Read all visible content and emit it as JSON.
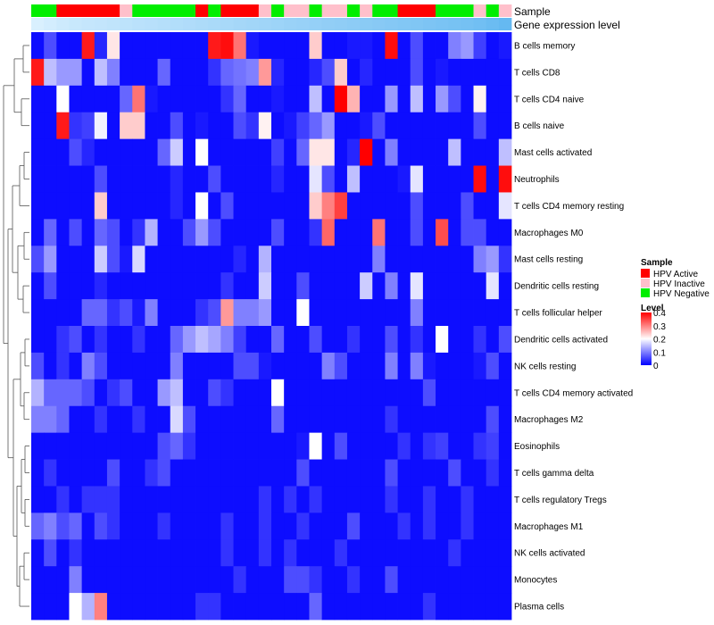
{
  "chart_data": {
    "type": "heatmap",
    "title": "",
    "annotation_labels": [
      "Sample",
      "Gene expression level"
    ],
    "rows": [
      "B cells memory",
      "T cells CD8",
      "T cells CD4 naive",
      "B cells naive",
      "Mast cells activated",
      "Neutrophils",
      "T cells CD4 memory resting",
      "Macrophages M0",
      "Mast cells resting",
      "Dendritic cells resting",
      "T cells follicular helper",
      "Dendritic cells activated",
      "NK cells resting",
      "T cells CD4 memory activated",
      "Macrophages M2",
      "Eosinophils",
      "T cells gamma delta",
      "T cells regulatory  Tregs",
      "Macrophages M1",
      "NK cells activated",
      "Monocytes",
      "Plasma cells"
    ],
    "sample_groups": [
      "N",
      "N",
      "A",
      "A",
      "A",
      "A",
      "A",
      "I",
      "N",
      "N",
      "N",
      "N",
      "N",
      "A",
      "N",
      "A",
      "A",
      "A",
      "I",
      "N",
      "I",
      "I",
      "N",
      "I",
      "I",
      "N",
      "I",
      "N",
      "N",
      "A",
      "A",
      "A",
      "N",
      "N",
      "N",
      "I",
      "N",
      "I"
    ],
    "expression_level": [
      0.05,
      0.1,
      0.14,
      0.18,
      0.2,
      0.22,
      0.24,
      0.26,
      0.28,
      0.3,
      0.32,
      0.34,
      0.36,
      0.38,
      0.4,
      0.42,
      0.44,
      0.46,
      0.48,
      0.5,
      0.52,
      0.54,
      0.56,
      0.58,
      0.6,
      0.62,
      0.64,
      0.66,
      0.68,
      0.7,
      0.72,
      0.74,
      0.76,
      0.78,
      0.8,
      0.83,
      0.87,
      0.92
    ],
    "values": [
      [
        0.01,
        0.06,
        0.01,
        0.01,
        0.38,
        0.03,
        0.22,
        0.01,
        0.01,
        0.01,
        0.01,
        0.01,
        0.01,
        0.01,
        0.38,
        0.39,
        0.31,
        0.02,
        0.01,
        0.01,
        0.01,
        0.01,
        0.24,
        0.01,
        0.01,
        0.02,
        0.02,
        0.01,
        0.39,
        0.01,
        0.06,
        0.01,
        0.01,
        0.1,
        0.12,
        0.05,
        0.01,
        0.02
      ],
      [
        0.38,
        0.15,
        0.12,
        0.12,
        0.01,
        0.15,
        0.1,
        0.01,
        0.01,
        0.01,
        0.08,
        0.01,
        0.01,
        0.01,
        0.04,
        0.08,
        0.09,
        0.1,
        0.28,
        0.03,
        0.01,
        0.01,
        0.03,
        0.06,
        0.24,
        0.01,
        0.03,
        0.01,
        0.01,
        0.01,
        0.06,
        0.01,
        0.02,
        0.01,
        0.01,
        0.01,
        0.01,
        0.01
      ],
      [
        0.01,
        0.01,
        0.2,
        0.01,
        0.01,
        0.01,
        0.01,
        0.08,
        0.31,
        0.02,
        0.01,
        0.01,
        0.01,
        0.01,
        0.01,
        0.04,
        0.08,
        0.01,
        0.01,
        0.02,
        0.01,
        0.01,
        0.15,
        0.01,
        0.4,
        0.26,
        0.01,
        0.01,
        0.12,
        0.01,
        0.15,
        0.01,
        0.12,
        0.06,
        0.01,
        0.21,
        0.01,
        0.01
      ],
      [
        0.01,
        0.01,
        0.38,
        0.04,
        0.05,
        0.19,
        0.01,
        0.24,
        0.24,
        0.01,
        0.01,
        0.06,
        0.01,
        0.02,
        0.01,
        0.01,
        0.06,
        0.04,
        0.21,
        0.01,
        0.02,
        0.05,
        0.08,
        0.12,
        0.01,
        0.01,
        0.02,
        0.06,
        0.01,
        0.01,
        0.01,
        0.01,
        0.01,
        0.01,
        0.01,
        0.06,
        0.01,
        0.01
      ],
      [
        0.01,
        0.01,
        0.01,
        0.06,
        0.03,
        0.01,
        0.01,
        0.01,
        0.01,
        0.01,
        0.08,
        0.16,
        0.01,
        0.2,
        0.01,
        0.01,
        0.01,
        0.01,
        0.01,
        0.05,
        0.01,
        0.08,
        0.22,
        0.22,
        0.01,
        0.03,
        0.4,
        0.01,
        0.1,
        0.01,
        0.01,
        0.01,
        0.01,
        0.15,
        0.01,
        0.01,
        0.01,
        0.15
      ],
      [
        0.01,
        0.01,
        0.01,
        0.01,
        0.01,
        0.06,
        0.01,
        0.01,
        0.01,
        0.01,
        0.01,
        0.03,
        0.01,
        0.01,
        0.06,
        0.01,
        0.01,
        0.01,
        0.01,
        0.03,
        0.01,
        0.01,
        0.18,
        0.06,
        0.01,
        0.15,
        0.01,
        0.01,
        0.01,
        0.02,
        0.18,
        0.01,
        0.01,
        0.01,
        0.01,
        0.39,
        0.01,
        0.39
      ],
      [
        0.01,
        0.01,
        0.01,
        0.01,
        0.01,
        0.24,
        0.01,
        0.01,
        0.01,
        0.01,
        0.01,
        0.03,
        0.01,
        0.2,
        0.01,
        0.06,
        0.01,
        0.01,
        0.01,
        0.01,
        0.01,
        0.01,
        0.24,
        0.3,
        0.35,
        0.01,
        0.01,
        0.01,
        0.01,
        0.01,
        0.06,
        0.01,
        0.01,
        0.01,
        0.06,
        0.01,
        0.01,
        0.18
      ],
      [
        0.01,
        0.08,
        0.01,
        0.06,
        0.01,
        0.08,
        0.06,
        0.01,
        0.04,
        0.14,
        0.01,
        0.01,
        0.06,
        0.12,
        0.06,
        0.01,
        0.01,
        0.01,
        0.01,
        0.06,
        0.01,
        0.01,
        0.04,
        0.32,
        0.01,
        0.01,
        0.01,
        0.31,
        0.01,
        0.01,
        0.06,
        0.01,
        0.34,
        0.01,
        0.06,
        0.06,
        0.01,
        0.01
      ],
      [
        0.06,
        0.12,
        0.01,
        0.01,
        0.01,
        0.16,
        0.06,
        0.02,
        0.17,
        0.01,
        0.01,
        0.01,
        0.01,
        0.01,
        0.01,
        0.01,
        0.03,
        0.01,
        0.14,
        0.01,
        0.01,
        0.01,
        0.01,
        0.01,
        0.01,
        0.01,
        0.01,
        0.1,
        0.01,
        0.01,
        0.01,
        0.01,
        0.01,
        0.01,
        0.01,
        0.1,
        0.12,
        0.04
      ],
      [
        0.01,
        0.06,
        0.01,
        0.01,
        0.01,
        0.03,
        0.01,
        0.01,
        0.01,
        0.01,
        0.01,
        0.01,
        0.01,
        0.01,
        0.01,
        0.04,
        0.01,
        0.01,
        0.16,
        0.01,
        0.01,
        0.06,
        0.01,
        0.01,
        0.01,
        0.01,
        0.16,
        0.01,
        0.1,
        0.01,
        0.18,
        0.01,
        0.01,
        0.01,
        0.01,
        0.01,
        0.18,
        0.01
      ],
      [
        0.01,
        0.01,
        0.01,
        0.01,
        0.08,
        0.08,
        0.04,
        0.06,
        0.02,
        0.1,
        0.01,
        0.01,
        0.01,
        0.04,
        0.06,
        0.28,
        0.1,
        0.1,
        0.12,
        0.01,
        0.01,
        0.2,
        0.01,
        0.01,
        0.01,
        0.01,
        0.01,
        0.01,
        0.01,
        0.01,
        0.1,
        0.01,
        0.01,
        0.01,
        0.01,
        0.01,
        0.01,
        0.01
      ],
      [
        0.01,
        0.01,
        0.04,
        0.06,
        0.01,
        0.04,
        0.01,
        0.01,
        0.04,
        0.01,
        0.01,
        0.08,
        0.12,
        0.15,
        0.13,
        0.1,
        0.05,
        0.01,
        0.01,
        0.08,
        0.01,
        0.01,
        0.06,
        0.01,
        0.01,
        0.04,
        0.01,
        0.01,
        0.06,
        0.01,
        0.04,
        0.01,
        0.2,
        0.01,
        0.01,
        0.04,
        0.01,
        0.06
      ],
      [
        0.06,
        0.01,
        0.04,
        0.01,
        0.1,
        0.06,
        0.01,
        0.01,
        0.01,
        0.01,
        0.01,
        0.1,
        0.01,
        0.01,
        0.01,
        0.01,
        0.06,
        0.06,
        0.02,
        0.01,
        0.01,
        0.01,
        0.01,
        0.1,
        0.06,
        0.01,
        0.01,
        0.01,
        0.1,
        0.01,
        0.1,
        0.02,
        0.01,
        0.01,
        0.01,
        0.02,
        0.06,
        0.01
      ],
      [
        0.14,
        0.08,
        0.08,
        0.08,
        0.06,
        0.01,
        0.04,
        0.06,
        0.01,
        0.01,
        0.12,
        0.15,
        0.01,
        0.01,
        0.06,
        0.04,
        0.01,
        0.01,
        0.01,
        0.2,
        0.01,
        0.01,
        0.01,
        0.01,
        0.01,
        0.01,
        0.01,
        0.01,
        0.01,
        0.01,
        0.01,
        0.06,
        0.01,
        0.01,
        0.01,
        0.01,
        0.01,
        0.01
      ],
      [
        0.1,
        0.1,
        0.08,
        0.01,
        0.01,
        0.04,
        0.01,
        0.01,
        0.04,
        0.01,
        0.01,
        0.17,
        0.06,
        0.01,
        0.01,
        0.01,
        0.01,
        0.01,
        0.01,
        0.08,
        0.01,
        0.01,
        0.01,
        0.01,
        0.01,
        0.01,
        0.01,
        0.01,
        0.04,
        0.01,
        0.01,
        0.01,
        0.01,
        0.01,
        0.01,
        0.01,
        0.06,
        0.01
      ],
      [
        0.01,
        0.01,
        0.01,
        0.01,
        0.01,
        0.01,
        0.01,
        0.01,
        0.01,
        0.01,
        0.06,
        0.08,
        0.04,
        0.01,
        0.01,
        0.01,
        0.01,
        0.01,
        0.01,
        0.01,
        0.01,
        0.02,
        0.2,
        0.01,
        0.06,
        0.01,
        0.01,
        0.01,
        0.01,
        0.04,
        0.01,
        0.04,
        0.05,
        0.01,
        0.01,
        0.04,
        0.05,
        0.01
      ],
      [
        0.01,
        0.04,
        0.01,
        0.01,
        0.01,
        0.01,
        0.06,
        0.01,
        0.01,
        0.04,
        0.06,
        0.01,
        0.01,
        0.01,
        0.01,
        0.01,
        0.01,
        0.01,
        0.01,
        0.01,
        0.01,
        0.06,
        0.01,
        0.01,
        0.01,
        0.01,
        0.01,
        0.01,
        0.06,
        0.01,
        0.01,
        0.01,
        0.01,
        0.06,
        0.01,
        0.01,
        0.04,
        0.01
      ],
      [
        0.01,
        0.01,
        0.04,
        0.01,
        0.04,
        0.04,
        0.04,
        0.01,
        0.01,
        0.01,
        0.01,
        0.01,
        0.01,
        0.01,
        0.01,
        0.01,
        0.01,
        0.01,
        0.04,
        0.01,
        0.04,
        0.01,
        0.04,
        0.01,
        0.01,
        0.01,
        0.01,
        0.01,
        0.04,
        0.01,
        0.01,
        0.04,
        0.01,
        0.01,
        0.04,
        0.01,
        0.01,
        0.01
      ],
      [
        0.08,
        0.1,
        0.06,
        0.08,
        0.01,
        0.06,
        0.04,
        0.01,
        0.01,
        0.01,
        0.04,
        0.01,
        0.01,
        0.01,
        0.01,
        0.04,
        0.01,
        0.01,
        0.04,
        0.01,
        0.01,
        0.04,
        0.01,
        0.01,
        0.01,
        0.06,
        0.01,
        0.01,
        0.01,
        0.04,
        0.01,
        0.04,
        0.01,
        0.01,
        0.04,
        0.01,
        0.01,
        0.01
      ],
      [
        0.01,
        0.06,
        0.01,
        0.04,
        0.01,
        0.01,
        0.01,
        0.01,
        0.01,
        0.01,
        0.01,
        0.01,
        0.01,
        0.01,
        0.01,
        0.04,
        0.01,
        0.01,
        0.04,
        0.01,
        0.04,
        0.01,
        0.01,
        0.01,
        0.04,
        0.01,
        0.01,
        0.01,
        0.01,
        0.01,
        0.01,
        0.01,
        0.01,
        0.04,
        0.01,
        0.01,
        0.01,
        0.01
      ],
      [
        0.01,
        0.01,
        0.01,
        0.1,
        0.01,
        0.01,
        0.01,
        0.01,
        0.01,
        0.01,
        0.01,
        0.01,
        0.01,
        0.01,
        0.01,
        0.01,
        0.04,
        0.01,
        0.01,
        0.01,
        0.06,
        0.06,
        0.04,
        0.01,
        0.01,
        0.04,
        0.01,
        0.01,
        0.06,
        0.01,
        0.01,
        0.01,
        0.01,
        0.01,
        0.01,
        0.01,
        0.01,
        0.01
      ],
      [
        0.01,
        0.01,
        0.01,
        0.2,
        0.14,
        0.3,
        0.01,
        0.01,
        0.01,
        0.01,
        0.01,
        0.01,
        0.01,
        0.04,
        0.04,
        0.01,
        0.01,
        0.01,
        0.01,
        0.01,
        0.01,
        0.01,
        0.08,
        0.01,
        0.01,
        0.01,
        0.01,
        0.01,
        0.01,
        0.01,
        0.01,
        0.04,
        0.01,
        0.01,
        0.01,
        0.01,
        0.01,
        0.01
      ]
    ],
    "legend": {
      "sample_title": "Sample",
      "groups": [
        {
          "key": "A",
          "label": "HPV Active",
          "color": "#ff0000"
        },
        {
          "key": "I",
          "label": "HPV Inactive",
          "color": "#ffc0cb"
        },
        {
          "key": "N",
          "label": "HPV Negative",
          "color": "#00ee00"
        }
      ],
      "level_title": "Level",
      "level_ticks": [
        0.4,
        0.3,
        0.2,
        0.1,
        0
      ]
    },
    "value_range": [
      0,
      0.4
    ],
    "colors": {
      "low": "#0000ff",
      "mid": "#ffffff",
      "high": "#ff0000",
      "expr_low": "#e0f3ff",
      "expr_high": "#5ab4f0",
      "dendrogram": "#555555"
    }
  }
}
